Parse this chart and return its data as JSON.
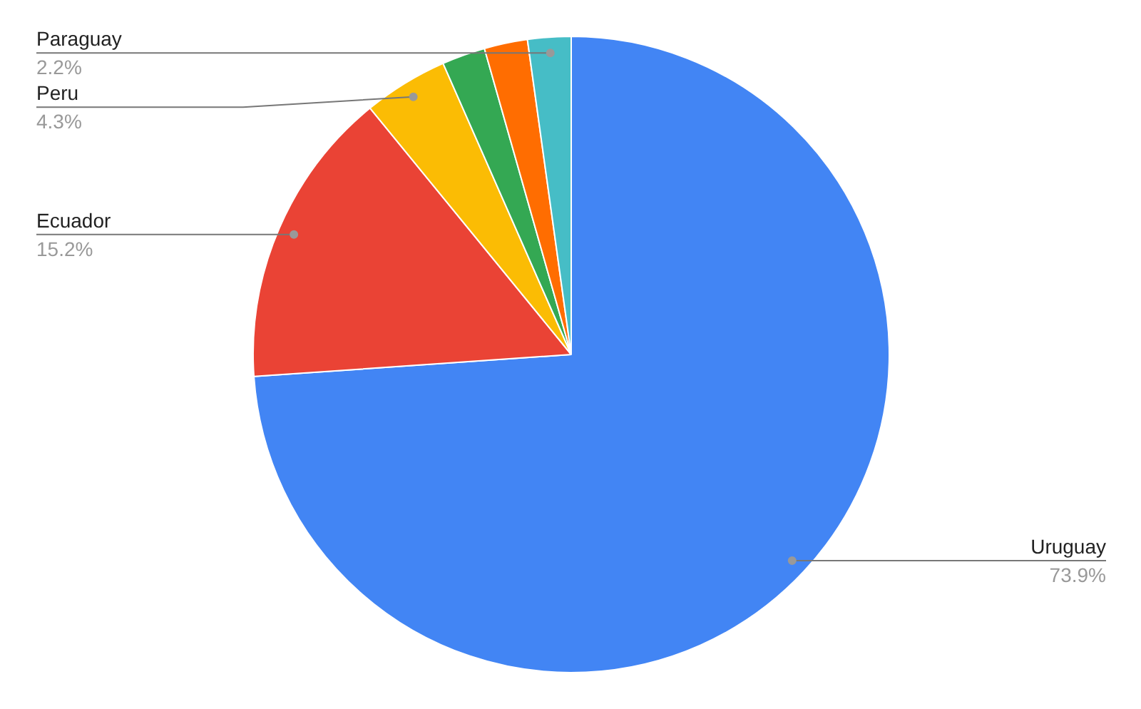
{
  "chart_data": {
    "type": "pie",
    "categories": [
      "Uruguay",
      "Ecuador",
      "Peru",
      null,
      null,
      "Paraguay"
    ],
    "values": [
      73.9,
      15.2,
      4.3,
      2.2,
      2.2,
      2.2
    ],
    "colors": [
      "#4285f4",
      "#ea4335",
      "#fbbc04",
      "#34a853",
      "#ff6d01",
      "#46bdc6"
    ],
    "value_labels": [
      "73.9%",
      "15.2%",
      "4.3%",
      null,
      null,
      "2.2%"
    ],
    "legend": false
  }
}
